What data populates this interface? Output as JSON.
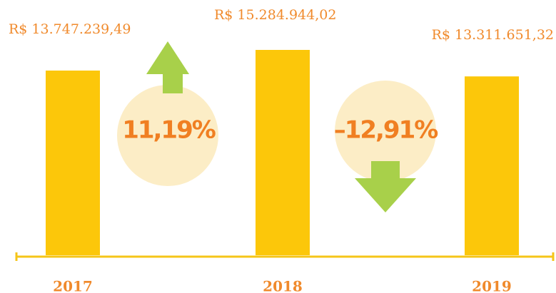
{
  "chart_data": {
    "type": "bar",
    "categories": [
      "2017",
      "2018",
      "2019"
    ],
    "values": [
      13747239.49,
      15284944.02,
      13311651.32
    ],
    "value_labels": [
      "R$ 13.747.239,49",
      "R$ 15.284.944,02",
      "R$ 13.311.651,32"
    ],
    "color": "#fcc70a",
    "ylim": [
      0,
      19000000
    ],
    "annotations": [
      "11,19%",
      "–12,91%"
    ]
  }
}
